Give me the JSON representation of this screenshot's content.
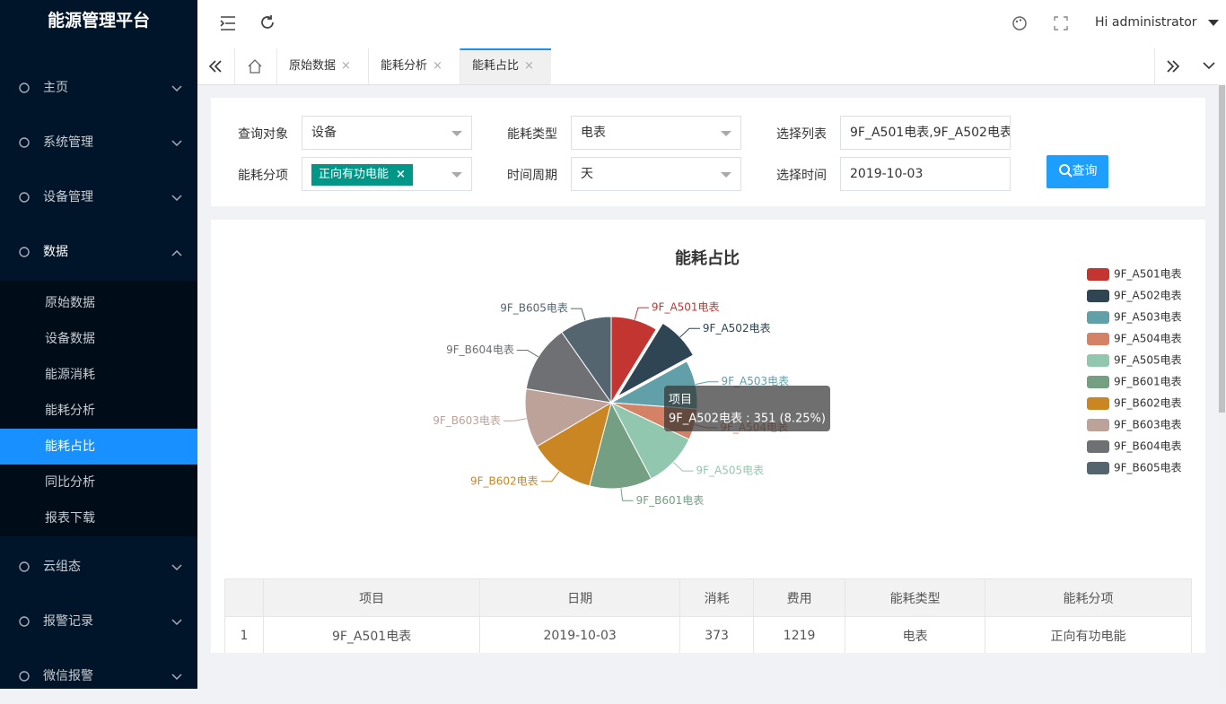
{
  "sidebar": {
    "brand": "能源管理平台",
    "menu": [
      "主页",
      "系统管理",
      "设备管理",
      "数据"
    ],
    "submenu": [
      "原始数据",
      "设备数据",
      "能源消耗",
      "能耗分析",
      "能耗占比",
      "同比分析",
      "报表下载"
    ],
    "menu_after": [
      "云组态",
      "报警记录",
      "微信报警"
    ]
  },
  "header": {
    "user": "Hi administrator"
  },
  "tabs": [
    "原始数据",
    "能耗分析",
    "能耗占比"
  ],
  "filters": [
    {
      "label": "查询对象",
      "value": "设备"
    },
    {
      "label": "能耗类型",
      "value": "电表"
    },
    {
      "label": "选择列表",
      "value": "9F_A501电表,9F_A502电表,"
    },
    {
      "label": "能耗分项",
      "value": "正向有功电能"
    },
    {
      "label": "时间周期",
      "value": "天"
    },
    {
      "label": "选择时间",
      "value": "2019-10-03"
    }
  ],
  "button": "查询",
  "chart_data": {
    "type": "pie",
    "title": "能耗占比",
    "categories": [
      "9F_A501电表",
      "9F_A502电表",
      "9F_A503电表",
      "9F_A504电表",
      "9F_A505电表",
      "9F_B601电表",
      "9F_B602电表",
      "9F_B603电表",
      "9F_B604电表",
      "9F_B605电表"
    ],
    "values": [
      373,
      351,
      390,
      248,
      437,
      501,
      530,
      470,
      540,
      414
    ],
    "colors": [
      "#c23531",
      "#2f4554",
      "#61a0a8",
      "#d48265",
      "#91c7ae",
      "#749f83",
      "#ca8622",
      "#bda29a",
      "#6e7074",
      "#546570"
    ],
    "legend": "right",
    "tooltip": {
      "title": "项目",
      "text": "9F_A502电表 : 351 (8.25%)"
    }
  },
  "table": {
    "columns": [
      "项目",
      "日期",
      "消耗",
      "费用",
      "能耗类型",
      "能耗分项"
    ],
    "rows": [
      [
        1,
        "9F_A501电表",
        "2019-10-03",
        373,
        1219,
        "电表",
        "正向有功电能"
      ]
    ]
  }
}
